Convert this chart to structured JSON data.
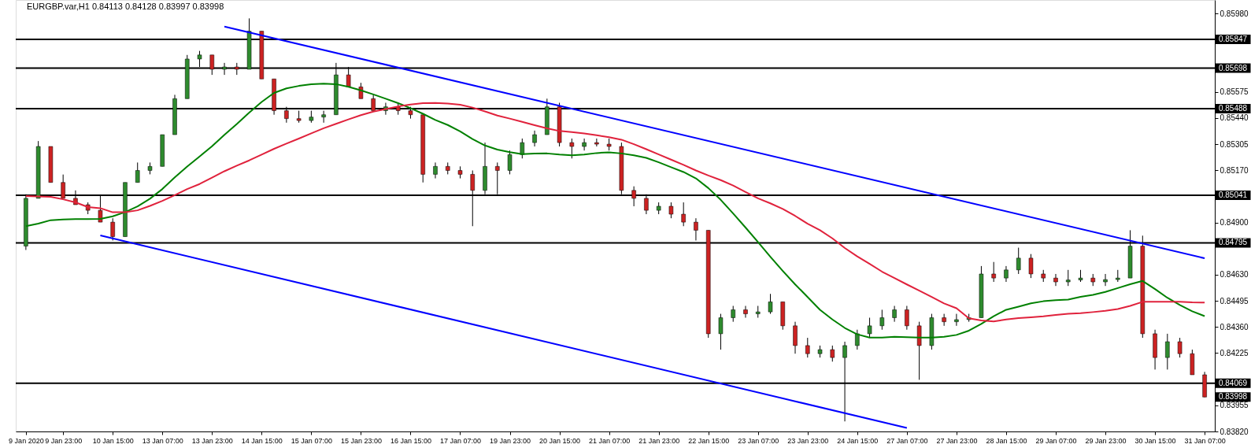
{
  "chart_data": {
    "type": "candlestick",
    "title": "EURGBP.var,H1 0.84113 0.84128 0.83997 0.83998",
    "categories": [
      "9 Jan 2020",
      null,
      null,
      "9 Jan 23:00",
      null,
      null,
      null,
      "10 Jan 15:00",
      null,
      null,
      null,
      "13 Jan 07:00",
      null,
      null,
      null,
      "13 Jan 23:00",
      null,
      null,
      null,
      "14 Jan 15:00",
      null,
      null,
      null,
      "15 Jan 07:00",
      null,
      null,
      null,
      "15 Jan 23:00",
      null,
      null,
      null,
      "16 Jan 15:00",
      null,
      null,
      null,
      "17 Jan 07:00",
      null,
      null,
      null,
      "19 Jan 23:00",
      null,
      null,
      null,
      "20 Jan 15:00",
      null,
      null,
      null,
      "21 Jan 07:00",
      null,
      null,
      null,
      "21 Jan 23:00",
      null,
      null,
      null,
      "22 Jan 15:00",
      null,
      null,
      null,
      "23 Jan 07:00",
      null,
      null,
      null,
      "23 Jan 23:00",
      null,
      null,
      null,
      "24 Jan 15:00",
      null,
      null,
      null,
      "27 Jan 07:00",
      null,
      null,
      null,
      "27 Jan 23:00",
      null,
      null,
      null,
      "28 Jan 15:00",
      null,
      null,
      null,
      "29 Jan 07:00",
      null,
      null,
      null,
      "29 Jan 23:00",
      null,
      null,
      null,
      "30 Jan 15:00",
      null,
      null,
      null,
      "31 Jan 07:00"
    ],
    "ohlc": [
      [
        0.84778,
        0.85046,
        0.84758,
        0.85025
      ],
      [
        0.85025,
        0.85321,
        0.85025,
        0.85293
      ],
      [
        0.85293,
        0.85293,
        0.85107,
        0.85107
      ],
      [
        0.85107,
        0.85148,
        0.85025,
        0.85025
      ],
      [
        0.85025,
        0.85066,
        0.84992,
        0.84992
      ],
      [
        0.84992,
        0.85004,
        0.84943,
        0.84963
      ],
      [
        0.84963,
        0.85041,
        0.84902,
        0.84902
      ],
      [
        0.84902,
        0.84922,
        0.84807,
        0.84827
      ],
      [
        0.84827,
        0.85107,
        0.84827,
        0.85107
      ],
      [
        0.85107,
        0.8521,
        0.85107,
        0.85169
      ],
      [
        0.85169,
        0.8521,
        0.85149,
        0.8519
      ],
      [
        0.8519,
        0.85354,
        0.8519,
        0.85354
      ],
      [
        0.85354,
        0.8556,
        0.85354,
        0.8554
      ],
      [
        0.8554,
        0.85766,
        0.8554,
        0.85745
      ],
      [
        0.85745,
        0.85787,
        0.85704,
        0.85766
      ],
      [
        0.85766,
        0.85766,
        0.85663,
        0.85692
      ],
      [
        0.85692,
        0.85725,
        0.85663,
        0.85704
      ],
      [
        0.85704,
        0.85725,
        0.85663,
        0.85692
      ],
      [
        0.85692,
        0.85955,
        0.85692,
        0.85889
      ],
      [
        0.85889,
        0.85889,
        0.85642,
        0.85642
      ],
      [
        0.85642,
        0.85642,
        0.85457,
        0.85478
      ],
      [
        0.85478,
        0.85498,
        0.85416,
        0.85437
      ],
      [
        0.85437,
        0.85478,
        0.85416,
        0.85427
      ],
      [
        0.85427,
        0.85478,
        0.85416,
        0.85445
      ],
      [
        0.85445,
        0.85478,
        0.85416,
        0.85457
      ],
      [
        0.85457,
        0.85725,
        0.85457,
        0.85663
      ],
      [
        0.85663,
        0.85704,
        0.85601,
        0.85601
      ],
      [
        0.85601,
        0.85622,
        0.8554,
        0.8554
      ],
      [
        0.8554,
        0.8556,
        0.85478,
        0.85478
      ],
      [
        0.85478,
        0.85519,
        0.85457,
        0.85498
      ],
      [
        0.85498,
        0.85519,
        0.85457,
        0.85478
      ],
      [
        0.85478,
        0.85498,
        0.85437,
        0.85457
      ],
      [
        0.85457,
        0.85457,
        0.85107,
        0.85149
      ],
      [
        0.85149,
        0.8521,
        0.85128,
        0.8519
      ],
      [
        0.8519,
        0.8521,
        0.85149,
        0.85169
      ],
      [
        0.85169,
        0.8519,
        0.85128,
        0.85149
      ],
      [
        0.85149,
        0.85169,
        0.84881,
        0.85066
      ],
      [
        0.85066,
        0.85313,
        0.85046,
        0.8519
      ],
      [
        0.8519,
        0.8521,
        0.85046,
        0.85169
      ],
      [
        0.85169,
        0.85272,
        0.85149,
        0.85251
      ],
      [
        0.85251,
        0.85334,
        0.85231,
        0.85313
      ],
      [
        0.85313,
        0.85375,
        0.85293,
        0.85354
      ],
      [
        0.85354,
        0.8554,
        0.85354,
        0.85498
      ],
      [
        0.85498,
        0.85519,
        0.85293,
        0.85313
      ],
      [
        0.85313,
        0.85334,
        0.85231,
        0.85293
      ],
      [
        0.85293,
        0.85334,
        0.85272,
        0.85313
      ],
      [
        0.85313,
        0.85334,
        0.85293,
        0.85305
      ],
      [
        0.85305,
        0.85334,
        0.85272,
        0.85293
      ],
      [
        0.85293,
        0.85313,
        0.85046,
        0.85066
      ],
      [
        0.85066,
        0.85087,
        0.84984,
        0.85025
      ],
      [
        0.85025,
        0.85046,
        0.84943,
        0.84963
      ],
      [
        0.84963,
        0.85004,
        0.84943,
        0.84984
      ],
      [
        0.84984,
        0.85004,
        0.84922,
        0.84943
      ],
      [
        0.84943,
        0.85004,
        0.84881,
        0.84902
      ],
      [
        0.84902,
        0.84922,
        0.84807,
        0.8486
      ],
      [
        0.8486,
        0.8486,
        0.84304,
        0.84325
      ],
      [
        0.84325,
        0.84428,
        0.84243,
        0.84408
      ],
      [
        0.84408,
        0.84469,
        0.84387,
        0.84449
      ],
      [
        0.84449,
        0.84469,
        0.84408,
        0.84428
      ],
      [
        0.84428,
        0.84469,
        0.84408,
        0.84438
      ],
      [
        0.84438,
        0.84531,
        0.84428,
        0.8449
      ],
      [
        0.8449,
        0.8449,
        0.84346,
        0.84366
      ],
      [
        0.84366,
        0.84387,
        0.84222,
        0.84264
      ],
      [
        0.84264,
        0.84304,
        0.84202,
        0.84222
      ],
      [
        0.84222,
        0.84264,
        0.84202,
        0.84243
      ],
      [
        0.84243,
        0.84264,
        0.84181,
        0.84202
      ],
      [
        0.84202,
        0.84284,
        0.83872,
        0.84264
      ],
      [
        0.84264,
        0.84346,
        0.84243,
        0.84325
      ],
      [
        0.84325,
        0.84408,
        0.84304,
        0.84366
      ],
      [
        0.84366,
        0.84449,
        0.84346,
        0.84408
      ],
      [
        0.84408,
        0.84469,
        0.84387,
        0.84449
      ],
      [
        0.84449,
        0.84469,
        0.84346,
        0.84366
      ],
      [
        0.84366,
        0.84387,
        0.84087,
        0.84264
      ],
      [
        0.84264,
        0.84428,
        0.84243,
        0.84408
      ],
      [
        0.84408,
        0.84428,
        0.84366,
        0.84387
      ],
      [
        0.84387,
        0.84428,
        0.84366,
        0.84398
      ],
      [
        0.84398,
        0.84428,
        0.84387,
        0.84408
      ],
      [
        0.84408,
        0.84675,
        0.84408,
        0.84634
      ],
      [
        0.84634,
        0.84696,
        0.84593,
        0.84613
      ],
      [
        0.84613,
        0.84675,
        0.84593,
        0.84655
      ],
      [
        0.84655,
        0.8477,
        0.84634,
        0.84716
      ],
      [
        0.84716,
        0.84737,
        0.84613,
        0.84634
      ],
      [
        0.84634,
        0.84655,
        0.84593,
        0.84613
      ],
      [
        0.84613,
        0.84634,
        0.84572,
        0.84593
      ],
      [
        0.84593,
        0.84655,
        0.84572,
        0.84603
      ],
      [
        0.84603,
        0.84655,
        0.84593,
        0.84613
      ],
      [
        0.84613,
        0.84634,
        0.84572,
        0.84593
      ],
      [
        0.84593,
        0.84634,
        0.84572,
        0.84605
      ],
      [
        0.84605,
        0.84655,
        0.84593,
        0.84613
      ],
      [
        0.84613,
        0.8486,
        0.84613,
        0.84778
      ],
      [
        0.84778,
        0.84832,
        0.84304,
        0.84325
      ],
      [
        0.84325,
        0.84346,
        0.8414,
        0.84202
      ],
      [
        0.84202,
        0.84325,
        0.8414,
        0.84284
      ],
      [
        0.84284,
        0.84304,
        0.84202,
        0.84222
      ],
      [
        0.84222,
        0.84243,
        0.84113,
        0.84113
      ],
      [
        0.84113,
        0.84128,
        0.83997,
        0.83998
      ]
    ],
    "colors": [
      "#2e8b2e",
      "#2e8b2e",
      "#cc2222",
      "#cc2222",
      "#cc2222",
      "#cc2222",
      "#cc2222",
      "#cc2222",
      "#2e8b2e",
      "#2e8b2e",
      "#2e8b2e",
      "#2e8b2e",
      "#2e8b2e",
      "#2e8b2e",
      "#2e8b2e",
      "#cc2222",
      "#2e8b2e",
      "#cc2222",
      "#2e8b2e",
      "#cc2222",
      "#cc2222",
      "#cc2222",
      "#cc2222",
      "#2e8b2e",
      "#2e8b2e",
      "#2e8b2e",
      "#cc2222",
      "#cc2222",
      "#cc2222",
      "#2e8b2e",
      "#cc2222",
      "#cc2222",
      "#cc2222",
      "#2e8b2e",
      "#cc2222",
      "#cc2222",
      "#cc2222",
      "#2e8b2e",
      "#cc2222",
      "#2e8b2e",
      "#2e8b2e",
      "#2e8b2e",
      "#2e8b2e",
      "#cc2222",
      "#cc2222",
      "#2e8b2e",
      "#cc2222",
      "#cc2222",
      "#cc2222",
      "#cc2222",
      "#cc2222",
      "#2e8b2e",
      "#cc2222",
      "#cc2222",
      "#cc2222",
      "#cc2222",
      "#2e8b2e",
      "#2e8b2e",
      "#cc2222",
      "#2e8b2e",
      "#2e8b2e",
      "#cc2222",
      "#cc2222",
      "#cc2222",
      "#2e8b2e",
      "#cc2222",
      "#2e8b2e",
      "#2e8b2e",
      "#2e8b2e",
      "#2e8b2e",
      "#2e8b2e",
      "#cc2222",
      "#cc2222",
      "#2e8b2e",
      "#cc2222",
      "#2e8b2e",
      "#2e8b2e",
      "#2e8b2e",
      "#cc2222",
      "#2e8b2e",
      "#2e8b2e",
      "#cc2222",
      "#cc2222",
      "#cc2222",
      "#2e8b2e",
      "#2e8b2e",
      "#cc2222",
      "#2e8b2e",
      "#2e8b2e",
      "#2e8b2e",
      "#cc2222",
      "#cc2222",
      "#2e8b2e",
      "#cc2222",
      "#cc2222",
      "#cc2222"
    ],
    "series": [
      {
        "type": "line",
        "color": "#008000",
        "values": [
          0.84881,
          0.84894,
          0.84912,
          0.84916,
          0.84918,
          0.84918,
          0.84919,
          0.84932,
          0.84954,
          0.84983,
          0.85023,
          0.85073,
          0.85133,
          0.85189,
          0.85241,
          0.85294,
          0.85353,
          0.85409,
          0.85468,
          0.85523,
          0.8557,
          0.85593,
          0.85606,
          0.85615,
          0.85618,
          0.85615,
          0.85601,
          0.85583,
          0.85562,
          0.8554,
          0.85517,
          0.85491,
          0.85462,
          0.8543,
          0.85404,
          0.85371,
          0.85331,
          0.85298,
          0.85277,
          0.85264,
          0.85253,
          0.85256,
          0.85257,
          0.85251,
          0.85247,
          0.85251,
          0.85259,
          0.85263,
          0.85257,
          0.85247,
          0.85234,
          0.85211,
          0.85186,
          0.85161,
          0.85128,
          0.85078,
          0.85017,
          0.84947,
          0.84874,
          0.84799,
          0.84723,
          0.8465,
          0.8458,
          0.84515,
          0.84449,
          0.84399,
          0.84355,
          0.84322,
          0.84305,
          0.84305,
          0.84309,
          0.84307,
          0.84305,
          0.84305,
          0.84309,
          0.84319,
          0.84341,
          0.84376,
          0.84416,
          0.84449,
          0.84465,
          0.84482,
          0.84493,
          0.84499,
          0.84502,
          0.84516,
          0.84526,
          0.84541,
          0.84561,
          0.84581,
          0.84598,
          0.84556,
          0.84511,
          0.84474,
          0.84441,
          0.84416
        ]
      },
      {
        "type": "line",
        "color": "#e0223c",
        "values": [
          0.85037,
          0.85035,
          0.85033,
          0.8502,
          0.85004,
          0.8498,
          0.84974,
          0.84953,
          0.84953,
          0.84963,
          0.84986,
          0.85012,
          0.85041,
          0.85073,
          0.85099,
          0.85132,
          0.85165,
          0.85194,
          0.85221,
          0.85251,
          0.85281,
          0.85308,
          0.85334,
          0.85361,
          0.85387,
          0.8541,
          0.85433,
          0.85455,
          0.85473,
          0.85486,
          0.855,
          0.8551,
          0.85517,
          0.85518,
          0.85515,
          0.85509,
          0.85494,
          0.85474,
          0.85453,
          0.85437,
          0.8542,
          0.85403,
          0.85387,
          0.85373,
          0.85367,
          0.8536,
          0.85351,
          0.85341,
          0.85328,
          0.85305,
          0.85279,
          0.85252,
          0.85225,
          0.85198,
          0.85169,
          0.85143,
          0.85119,
          0.85091,
          0.85058,
          0.85025,
          0.84999,
          0.8497,
          0.84934,
          0.84894,
          0.8486,
          0.84818,
          0.84768,
          0.84725,
          0.84686,
          0.84646,
          0.84613,
          0.8458,
          0.84548,
          0.84515,
          0.84482,
          0.84457,
          0.84405,
          0.84394,
          0.84389,
          0.84399,
          0.84406,
          0.8441,
          0.84415,
          0.84422,
          0.84428,
          0.84431,
          0.84437,
          0.84444,
          0.84453,
          0.84469,
          0.8449,
          0.8449,
          0.8449,
          0.8449,
          0.84487,
          0.84486
        ]
      },
      {
        "type": "line",
        "color": "#0000ff",
        "values": [
          null,
          null,
          null,
          null,
          null,
          null,
          null,
          null,
          null,
          null,
          null,
          null,
          null,
          null,
          null,
          null,
          0.85913,
          null,
          null,
          null,
          null,
          null,
          null,
          null,
          null,
          null,
          null,
          null,
          null,
          null,
          null,
          null,
          null,
          null,
          null,
          null,
          null,
          null,
          null,
          null,
          null,
          null,
          null,
          null,
          null,
          null,
          null,
          null,
          null,
          null,
          null,
          null,
          null,
          null,
          null,
          null,
          null,
          null,
          null,
          null,
          null,
          null,
          null,
          null,
          null,
          null,
          null,
          null,
          null,
          null,
          null,
          null,
          null,
          null,
          null,
          null,
          null,
          null,
          null,
          null,
          null,
          null,
          null,
          null,
          null,
          null,
          null,
          null,
          null,
          null,
          null,
          null,
          null,
          null,
          null,
          0.84715
        ]
      },
      {
        "type": "line",
        "color": "#0000ff",
        "values": [
          null,
          null,
          null,
          null,
          null,
          null,
          0.84833,
          null,
          null,
          null,
          null,
          null,
          null,
          null,
          null,
          null,
          null,
          null,
          null,
          null,
          null,
          null,
          null,
          null,
          null,
          null,
          null,
          null,
          null,
          null,
          null,
          null,
          null,
          null,
          null,
          null,
          null,
          null,
          null,
          null,
          null,
          null,
          null,
          null,
          null,
          null,
          null,
          null,
          null,
          null,
          null,
          null,
          null,
          null,
          null,
          null,
          null,
          null,
          null,
          null,
          null,
          null,
          null,
          null,
          null,
          null,
          null,
          null,
          null,
          null,
          null,
          0.83838,
          null,
          null,
          null,
          null,
          null,
          null,
          null,
          null,
          null,
          null,
          null,
          null,
          null,
          null,
          null,
          null,
          null,
          null,
          null,
          null,
          null,
          null,
          null,
          null
        ]
      }
    ],
    "ref_lines": [
      {
        "axis": "y",
        "value": 0.85847,
        "label": "0.85847",
        "color": "#000000"
      },
      {
        "axis": "y",
        "value": 0.85698,
        "label": "0.85698",
        "color": "#000000"
      },
      {
        "axis": "y",
        "value": 0.85488,
        "label": "0.85488",
        "color": "#000000"
      },
      {
        "axis": "y",
        "value": 0.85041,
        "label": "0.85041",
        "color": "#000000"
      },
      {
        "axis": "y",
        "value": 0.84795,
        "label": "0.84795",
        "color": "#000000"
      },
      {
        "axis": "y",
        "value": 0.84069,
        "label": "0.84069",
        "color": "#000000"
      }
    ],
    "annotations": [
      "0.83998"
    ],
    "ylim": [
      0.8382,
      0.8605
    ],
    "yticks": [
      {
        "value": 0.8598,
        "label": "0.85980"
      },
      0.85575,
      {
        "value": 0.8544,
        "label": "0.85440"
      },
      0.85305,
      {
        "value": 0.8517,
        "label": "0.85170"
      },
      {
        "value": 0.849,
        "label": "0.84900"
      },
      {
        "value": 0.8463,
        "label": "0.84630"
      },
      0.84495,
      {
        "value": 0.8436,
        "label": "0.84360"
      },
      0.84225,
      0.83955,
      {
        "value": 0.8382,
        "label": "0.83820"
      }
    ],
    "grid": false
  }
}
